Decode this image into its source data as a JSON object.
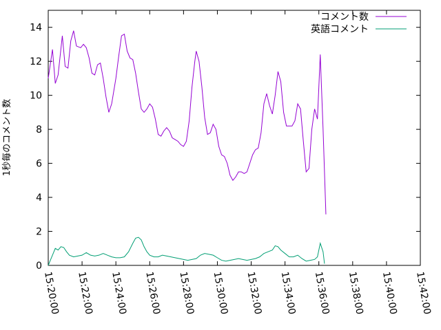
{
  "chart_data": {
    "type": "line",
    "ylabel": "1秒毎のコメント数",
    "xlabel": "",
    "title": "",
    "legend_position": "top-right",
    "grid": false,
    "x_range": [
      "15:20:00",
      "15:42:00"
    ],
    "ylim": [
      0,
      15
    ],
    "x_ticks": [
      "15:20:00",
      "15:22:00",
      "15:24:00",
      "15:26:00",
      "15:28:00",
      "15:30:00",
      "15:32:00",
      "15:34:00",
      "15:36:00",
      "15:38:00",
      "15:40:00",
      "15:42:00"
    ],
    "y_ticks": [
      0,
      2,
      4,
      6,
      8,
      10,
      12,
      14
    ],
    "series": [
      {
        "name": "コメント数",
        "color": "#9400d3",
        "points": [
          [
            "15:20:00",
            11.0
          ],
          [
            "15:20:15",
            12.7
          ],
          [
            "15:20:25",
            10.7
          ],
          [
            "15:20:35",
            11.2
          ],
          [
            "15:20:50",
            13.5
          ],
          [
            "15:21:00",
            11.7
          ],
          [
            "15:21:10",
            11.6
          ],
          [
            "15:21:20",
            13.2
          ],
          [
            "15:21:30",
            13.8
          ],
          [
            "15:21:40",
            12.9
          ],
          [
            "15:21:55",
            12.8
          ],
          [
            "15:22:05",
            13.0
          ],
          [
            "15:22:15",
            12.8
          ],
          [
            "15:22:25",
            12.2
          ],
          [
            "15:22:35",
            11.3
          ],
          [
            "15:22:45",
            11.2
          ],
          [
            "15:22:55",
            11.8
          ],
          [
            "15:23:05",
            11.9
          ],
          [
            "15:23:15",
            11.0
          ],
          [
            "15:23:25",
            9.9
          ],
          [
            "15:23:35",
            9.0
          ],
          [
            "15:23:45",
            9.5
          ],
          [
            "15:24:00",
            11.0
          ],
          [
            "15:24:10",
            12.3
          ],
          [
            "15:24:20",
            13.5
          ],
          [
            "15:24:30",
            13.6
          ],
          [
            "15:24:40",
            12.6
          ],
          [
            "15:24:50",
            12.2
          ],
          [
            "15:25:00",
            12.1
          ],
          [
            "15:25:10",
            11.3
          ],
          [
            "15:25:20",
            10.2
          ],
          [
            "15:25:30",
            9.2
          ],
          [
            "15:25:40",
            9.0
          ],
          [
            "15:25:50",
            9.2
          ],
          [
            "15:26:00",
            9.5
          ],
          [
            "15:26:10",
            9.3
          ],
          [
            "15:26:20",
            8.6
          ],
          [
            "15:26:30",
            7.7
          ],
          [
            "15:26:40",
            7.6
          ],
          [
            "15:26:50",
            7.9
          ],
          [
            "15:27:00",
            8.1
          ],
          [
            "15:27:10",
            7.9
          ],
          [
            "15:27:20",
            7.5
          ],
          [
            "15:27:30",
            7.4
          ],
          [
            "15:27:40",
            7.3
          ],
          [
            "15:27:50",
            7.1
          ],
          [
            "15:28:00",
            7.0
          ],
          [
            "15:28:10",
            7.3
          ],
          [
            "15:28:20",
            8.5
          ],
          [
            "15:28:30",
            10.5
          ],
          [
            "15:28:40",
            12.0
          ],
          [
            "15:28:45",
            12.6
          ],
          [
            "15:28:55",
            12.0
          ],
          [
            "15:29:05",
            10.5
          ],
          [
            "15:29:15",
            8.7
          ],
          [
            "15:29:25",
            7.7
          ],
          [
            "15:29:35",
            7.8
          ],
          [
            "15:29:45",
            8.3
          ],
          [
            "15:29:55",
            8.0
          ],
          [
            "15:30:05",
            7.0
          ],
          [
            "15:30:15",
            6.5
          ],
          [
            "15:30:25",
            6.4
          ],
          [
            "15:30:35",
            6.0
          ],
          [
            "15:30:45",
            5.3
          ],
          [
            "15:30:55",
            5.0
          ],
          [
            "15:31:05",
            5.2
          ],
          [
            "15:31:15",
            5.5
          ],
          [
            "15:31:25",
            5.5
          ],
          [
            "15:31:35",
            5.4
          ],
          [
            "15:31:45",
            5.5
          ],
          [
            "15:31:55",
            6.0
          ],
          [
            "15:32:05",
            6.5
          ],
          [
            "15:32:15",
            6.8
          ],
          [
            "15:32:25",
            6.9
          ],
          [
            "15:32:35",
            7.8
          ],
          [
            "15:32:45",
            9.5
          ],
          [
            "15:32:55",
            10.1
          ],
          [
            "15:33:05",
            9.4
          ],
          [
            "15:33:15",
            8.9
          ],
          [
            "15:33:25",
            10.0
          ],
          [
            "15:33:35",
            11.4
          ],
          [
            "15:33:45",
            10.8
          ],
          [
            "15:33:55",
            9.0
          ],
          [
            "15:34:05",
            8.2
          ],
          [
            "15:34:15",
            8.2
          ],
          [
            "15:34:25",
            8.2
          ],
          [
            "15:34:35",
            8.5
          ],
          [
            "15:34:45",
            9.5
          ],
          [
            "15:34:55",
            9.2
          ],
          [
            "15:35:05",
            7.3
          ],
          [
            "15:35:15",
            5.5
          ],
          [
            "15:35:25",
            5.7
          ],
          [
            "15:35:35",
            8.0
          ],
          [
            "15:35:45",
            9.2
          ],
          [
            "15:35:55",
            8.6
          ],
          [
            "15:36:05",
            12.4
          ],
          [
            "15:36:15",
            8.0
          ],
          [
            "15:36:25",
            3.0
          ]
        ]
      },
      {
        "name": "英語コメント",
        "color": "#009e73",
        "points": [
          [
            "15:20:00",
            0.0
          ],
          [
            "15:20:15",
            0.6
          ],
          [
            "15:20:25",
            1.0
          ],
          [
            "15:20:35",
            0.9
          ],
          [
            "15:20:45",
            1.1
          ],
          [
            "15:20:55",
            1.05
          ],
          [
            "15:21:05",
            0.8
          ],
          [
            "15:21:15",
            0.6
          ],
          [
            "15:21:30",
            0.5
          ],
          [
            "15:21:45",
            0.55
          ],
          [
            "15:22:00",
            0.6
          ],
          [
            "15:22:15",
            0.75
          ],
          [
            "15:22:30",
            0.6
          ],
          [
            "15:22:45",
            0.55
          ],
          [
            "15:23:00",
            0.6
          ],
          [
            "15:23:15",
            0.7
          ],
          [
            "15:23:30",
            0.6
          ],
          [
            "15:23:45",
            0.5
          ],
          [
            "15:24:00",
            0.45
          ],
          [
            "15:24:15",
            0.45
          ],
          [
            "15:24:30",
            0.5
          ],
          [
            "15:24:45",
            0.8
          ],
          [
            "15:25:00",
            1.3
          ],
          [
            "15:25:10",
            1.6
          ],
          [
            "15:25:20",
            1.65
          ],
          [
            "15:25:30",
            1.5
          ],
          [
            "15:25:40",
            1.1
          ],
          [
            "15:25:50",
            0.8
          ],
          [
            "15:26:00",
            0.6
          ],
          [
            "15:26:15",
            0.5
          ],
          [
            "15:26:30",
            0.5
          ],
          [
            "15:26:45",
            0.6
          ],
          [
            "15:27:00",
            0.55
          ],
          [
            "15:27:15",
            0.5
          ],
          [
            "15:27:30",
            0.45
          ],
          [
            "15:27:45",
            0.4
          ],
          [
            "15:28:00",
            0.35
          ],
          [
            "15:28:15",
            0.3
          ],
          [
            "15:28:30",
            0.35
          ],
          [
            "15:28:45",
            0.4
          ],
          [
            "15:29:00",
            0.6
          ],
          [
            "15:29:15",
            0.7
          ],
          [
            "15:29:30",
            0.65
          ],
          [
            "15:29:45",
            0.6
          ],
          [
            "15:30:00",
            0.45
          ],
          [
            "15:30:15",
            0.3
          ],
          [
            "15:30:30",
            0.25
          ],
          [
            "15:30:45",
            0.3
          ],
          [
            "15:31:00",
            0.35
          ],
          [
            "15:31:15",
            0.4
          ],
          [
            "15:31:30",
            0.35
          ],
          [
            "15:31:45",
            0.3
          ],
          [
            "15:32:00",
            0.35
          ],
          [
            "15:32:15",
            0.4
          ],
          [
            "15:32:30",
            0.5
          ],
          [
            "15:32:45",
            0.7
          ],
          [
            "15:33:00",
            0.8
          ],
          [
            "15:33:15",
            0.9
          ],
          [
            "15:33:25",
            1.15
          ],
          [
            "15:33:35",
            1.1
          ],
          [
            "15:33:45",
            0.9
          ],
          [
            "15:34:00",
            0.7
          ],
          [
            "15:34:15",
            0.5
          ],
          [
            "15:34:30",
            0.5
          ],
          [
            "15:34:45",
            0.6
          ],
          [
            "15:35:00",
            0.4
          ],
          [
            "15:35:15",
            0.25
          ],
          [
            "15:35:30",
            0.3
          ],
          [
            "15:35:45",
            0.35
          ],
          [
            "15:35:55",
            0.5
          ],
          [
            "15:36:05",
            1.3
          ],
          [
            "15:36:15",
            0.8
          ],
          [
            "15:36:20",
            0.1
          ]
        ]
      }
    ]
  }
}
